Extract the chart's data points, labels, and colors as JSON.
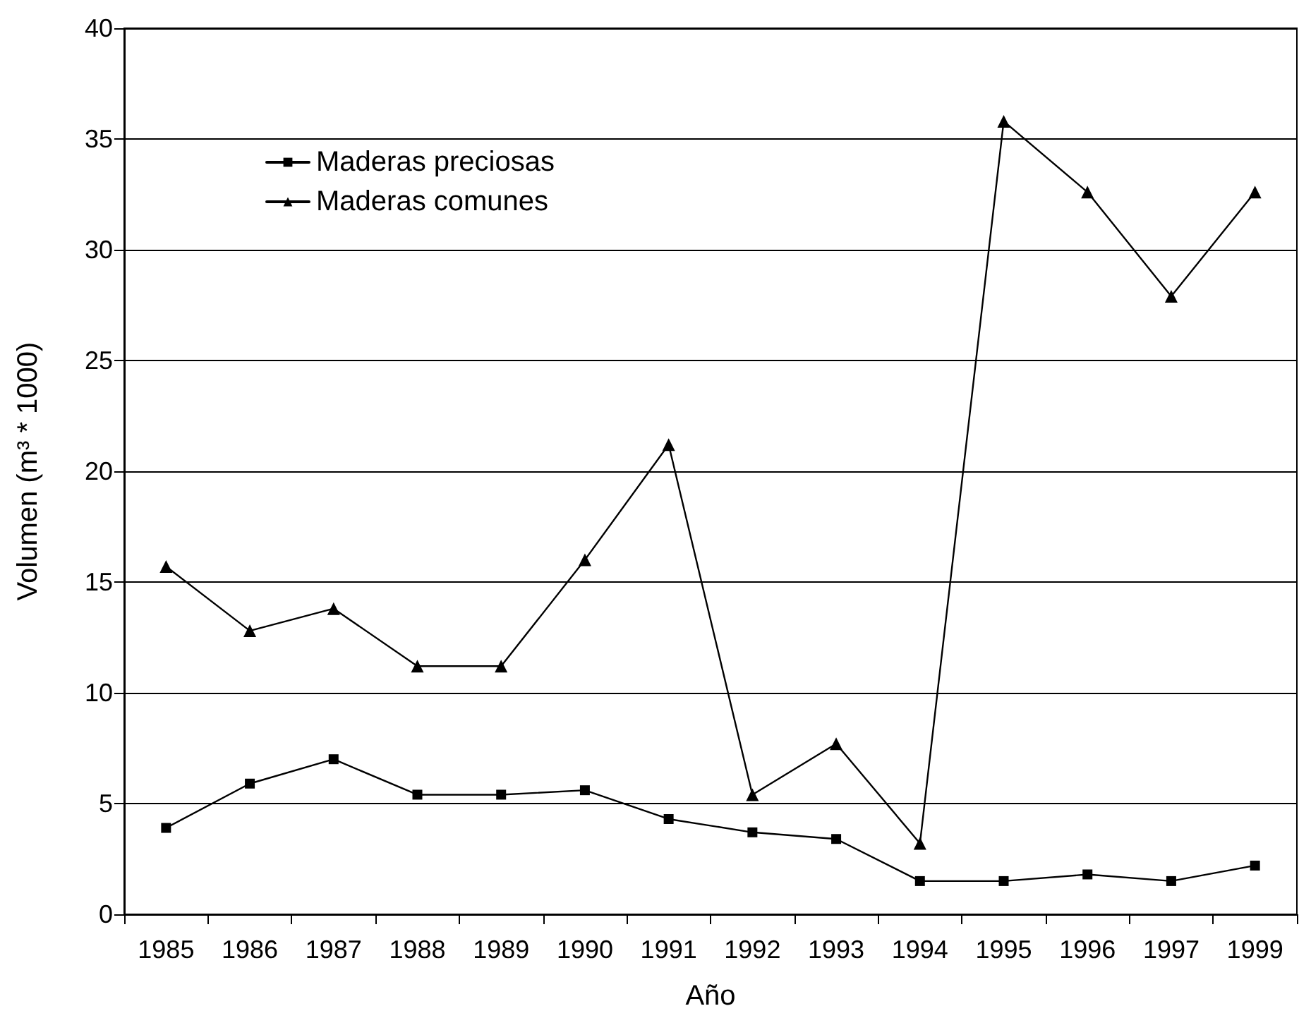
{
  "chart_data": {
    "type": "line",
    "xlabel": "Año",
    "ylabel": "Volumen (m³ * 1000)",
    "categories": [
      "1985",
      "1986",
      "1987",
      "1988",
      "1989",
      "1990",
      "1991",
      "1992",
      "1993",
      "1994",
      "1995",
      "1996",
      "1997",
      "1999"
    ],
    "series": [
      {
        "name": "Maderas preciosas",
        "color": "#000000",
        "marker": "square",
        "values": [
          3.9,
          5.9,
          7.0,
          5.4,
          5.4,
          5.6,
          4.3,
          3.7,
          3.4,
          1.5,
          1.5,
          1.8,
          1.5,
          2.2
        ]
      },
      {
        "name": "Maderas comunes",
        "color": "#000000",
        "marker": "triangle",
        "values": [
          15.7,
          12.8,
          13.8,
          11.2,
          11.2,
          16.0,
          21.2,
          5.4,
          7.7,
          3.2,
          35.8,
          32.6,
          27.9,
          32.6
        ]
      }
    ],
    "ylim": [
      0,
      40
    ],
    "yticks": [
      0,
      5,
      10,
      15,
      20,
      25,
      30,
      35,
      40
    ],
    "grid": "y",
    "legend": "top left",
    "line_style": "solid"
  }
}
